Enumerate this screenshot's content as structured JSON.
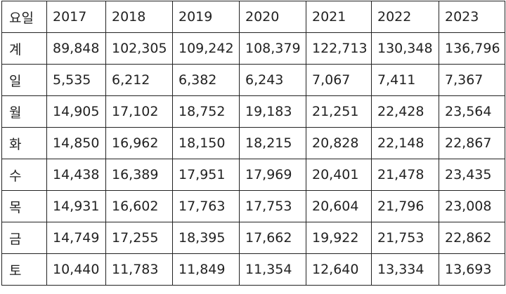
{
  "table": {
    "header": [
      "요일",
      "2017",
      "2018",
      "2019",
      "2020",
      "2021",
      "2022",
      "2023"
    ],
    "rows": [
      [
        "계",
        "89,848",
        "102,305",
        "109,242",
        "108,379",
        "122,713",
        "130,348",
        "136,796"
      ],
      [
        "일",
        "5,535",
        "6,212",
        "6,382",
        "6,243",
        "7,067",
        "7,411",
        "7,367"
      ],
      [
        "월",
        "14,905",
        "17,102",
        "18,752",
        "19,183",
        "21,251",
        "22,428",
        "23,564"
      ],
      [
        "화",
        "14,850",
        "16,962",
        "18,150",
        "18,215",
        "20,828",
        "22,148",
        "22,867"
      ],
      [
        "수",
        "14,438",
        "16,389",
        "17,951",
        "17,969",
        "20,401",
        "21,478",
        "23,435"
      ],
      [
        "목",
        "14,931",
        "16,602",
        "17,763",
        "17,753",
        "20,604",
        "21,796",
        "23,008"
      ],
      [
        "금",
        "14,749",
        "17,255",
        "18,395",
        "17,662",
        "19,922",
        "21,753",
        "22,862"
      ],
      [
        "토",
        "10,440",
        "11,783",
        "11,849",
        "11,354",
        "12,640",
        "13,334",
        "13,693"
      ]
    ]
  }
}
